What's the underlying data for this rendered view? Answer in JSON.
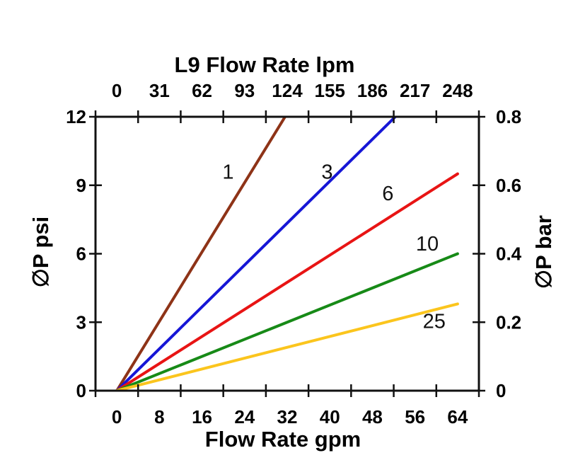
{
  "page": {
    "background": "#ffffff",
    "text_color": "#000000",
    "axis_color": "#111111"
  },
  "chart_data": {
    "type": "line",
    "title": "L9 Flow Rate lpm",
    "xlabel_bottom": "Flow Rate gpm",
    "ylabel_left": "∅P psi",
    "ylabel_right": "∅P bar",
    "grid": false,
    "frame": true,
    "legend": "inline-labels-on-lines",
    "x_bottom": {
      "unit": "gpm",
      "tick_labels": [
        "0",
        "8",
        "16",
        "24",
        "32",
        "40",
        "48",
        "56",
        "64"
      ],
      "min": 0,
      "max": 64,
      "step": 8
    },
    "x_top": {
      "unit": "lpm",
      "tick_labels": [
        "0",
        "31",
        "62",
        "93",
        "124",
        "155",
        "186",
        "217",
        "248"
      ],
      "min": 0,
      "max": 248,
      "step": 31
    },
    "y_left": {
      "unit": "psi",
      "tick_labels": [
        "0",
        "3",
        "6",
        "9",
        "12"
      ],
      "min": 0,
      "max": 12,
      "step": 3
    },
    "y_right": {
      "unit": "bar",
      "tick_labels": [
        "0",
        "0.2",
        "0.4",
        "0.6",
        "0.8"
      ],
      "min": 0,
      "max": 0.8,
      "step": 0.2
    },
    "series": [
      {
        "label": "1",
        "color": "#8E3317",
        "points_gpm_psi": [
          [
            0,
            0
          ],
          [
            31.6,
            12
          ]
        ],
        "label_at_gpm_psi": [
          20.9,
          9.6
        ]
      },
      {
        "label": "3",
        "color": "#1616D6",
        "points_gpm_psi": [
          [
            0,
            0
          ],
          [
            52.3,
            12
          ]
        ],
        "label_at_gpm_psi": [
          39.5,
          9.6
        ]
      },
      {
        "label": "6",
        "color": "#E81414",
        "points_gpm_psi": [
          [
            0,
            0
          ],
          [
            64,
            9.5
          ]
        ],
        "label_at_gpm_psi": [
          50.9,
          8.65
        ]
      },
      {
        "label": "10",
        "color": "#178A17",
        "points_gpm_psi": [
          [
            0,
            0
          ],
          [
            64,
            6.0
          ]
        ],
        "label_at_gpm_psi": [
          58.3,
          6.45
        ]
      },
      {
        "label": "25",
        "color": "#FBC51D",
        "points_gpm_psi": [
          [
            0,
            0
          ],
          [
            64,
            3.8
          ]
        ],
        "label_at_gpm_psi": [
          59.6,
          3.05
        ]
      }
    ]
  }
}
